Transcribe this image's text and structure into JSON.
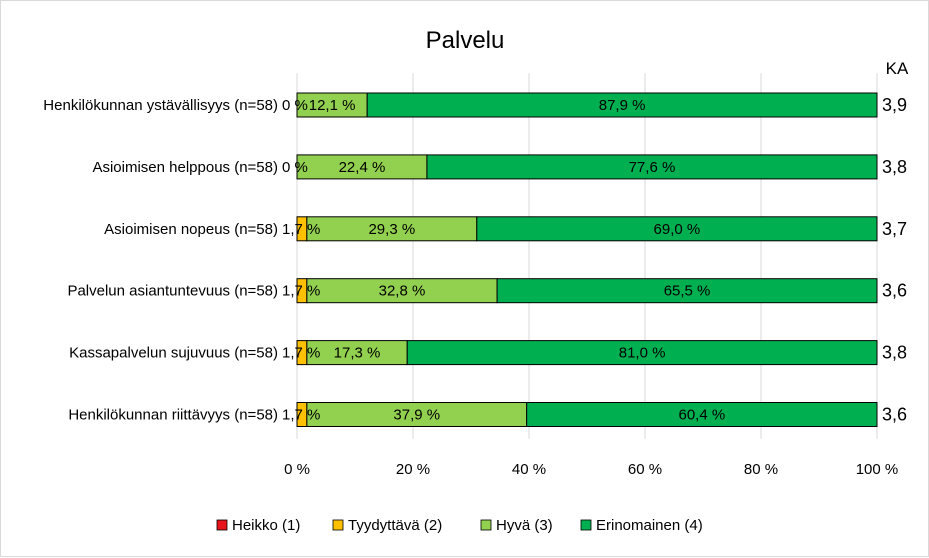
{
  "chart_data": {
    "type": "bar",
    "orientation": "horizontal",
    "stacked": "percent",
    "title": "Palvelu",
    "right_column_header": "KA",
    "categories": [
      "Henkilökunnan ystävällisyys (n=58)",
      "Asioimisen helppous (n=58)",
      "Asioimisen nopeus (n=58)",
      "Palvelun asiantuntevuus (n=58)",
      "Kassapalvelun sujuvuus (n=58)",
      "Henkilökunnan riittävyys (n=58)"
    ],
    "series": [
      {
        "name": "Heikko (1)",
        "color": "#e8141c",
        "values": [
          0,
          0,
          0,
          0,
          0,
          0
        ],
        "labels": [
          "0 %",
          "0 %",
          "",
          "",
          "",
          ""
        ]
      },
      {
        "name": "Tyydyttävä (2)",
        "color": "#ffc000",
        "values": [
          0,
          0,
          1.7,
          1.7,
          1.7,
          1.7
        ],
        "labels": [
          "",
          "",
          "1,7 %",
          "1,7 %",
          "1,7 %",
          "1,7 %"
        ]
      },
      {
        "name": "Hyvä (3)",
        "color": "#92d050",
        "values": [
          12.1,
          22.4,
          29.3,
          32.8,
          17.3,
          37.9
        ],
        "labels": [
          "12,1 %",
          "22,4 %",
          "29,3 %",
          "32,8 %",
          "17,3 %",
          "37,9 %"
        ]
      },
      {
        "name": "Erinomainen (4)",
        "color": "#00b050",
        "values": [
          87.9,
          77.6,
          69.0,
          65.5,
          81.0,
          60.4
        ],
        "labels": [
          "87,9 %",
          "77,6 %",
          "69,0 %",
          "65,5 %",
          "81,0 %",
          "60,4 %"
        ]
      }
    ],
    "averages": [
      "3,9",
      "3,8",
      "3,7",
      "3,6",
      "3,8",
      "3,6"
    ],
    "xlim": [
      0,
      100
    ],
    "x_ticks": [
      0,
      20,
      40,
      60,
      80,
      100
    ],
    "x_tick_labels": [
      "0 %",
      "20 %",
      "40 %",
      "60 %",
      "80 %",
      "100 %"
    ],
    "grid": true,
    "legend_position": "bottom"
  }
}
